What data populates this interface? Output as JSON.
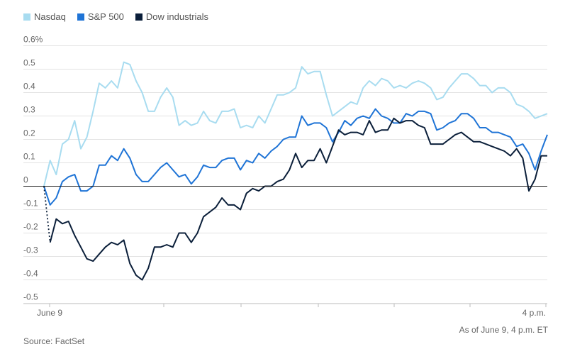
{
  "chart_data": {
    "type": "line",
    "title": "",
    "xlabel": "",
    "ylabel": "",
    "ylim": [
      -0.55,
      0.65
    ],
    "y_ticks": [
      "0.6%",
      "0.5",
      "0.4",
      "0.3",
      "0.2",
      "0.1",
      "0",
      "-0.1",
      "-0.2",
      "-0.3",
      "-0.4",
      "-0.5"
    ],
    "y_tick_values": [
      0.6,
      0.5,
      0.4,
      0.3,
      0.2,
      0.1,
      0,
      -0.1,
      -0.2,
      -0.3,
      -0.4,
      -0.5
    ],
    "x_tick_labels": [
      "June 9",
      "4 p.m."
    ],
    "grid": "horizontal",
    "legend_position": "top-left",
    "series": [
      {
        "name": "Nasdaq",
        "color": "#a8dcf0",
        "values": [
          0,
          0.11,
          0.05,
          0.18,
          0.2,
          0.28,
          0.16,
          0.21,
          0.32,
          0.44,
          0.42,
          0.45,
          0.42,
          0.53,
          0.52,
          0.45,
          0.4,
          0.32,
          0.32,
          0.38,
          0.42,
          0.38,
          0.26,
          0.28,
          0.26,
          0.27,
          0.32,
          0.28,
          0.27,
          0.32,
          0.32,
          0.33,
          0.25,
          0.26,
          0.25,
          0.3,
          0.27,
          0.33,
          0.39,
          0.39,
          0.4,
          0.42,
          0.51,
          0.48,
          0.49,
          0.49,
          0.39,
          0.3,
          0.32,
          0.34,
          0.36,
          0.35,
          0.42,
          0.45,
          0.43,
          0.46,
          0.45,
          0.42,
          0.43,
          0.42,
          0.44,
          0.45,
          0.44,
          0.42,
          0.37,
          0.38,
          0.42,
          0.45,
          0.48,
          0.48,
          0.46,
          0.43,
          0.43,
          0.4,
          0.42,
          0.42,
          0.4,
          0.35,
          0.34,
          0.32,
          0.29,
          0.3,
          0.31
        ]
      },
      {
        "name": "S&P 500",
        "color": "#1f74d6",
        "values": [
          0,
          -0.08,
          -0.05,
          0.02,
          0.04,
          0.05,
          -0.02,
          -0.02,
          0.0,
          0.09,
          0.09,
          0.13,
          0.11,
          0.16,
          0.12,
          0.05,
          0.02,
          0.02,
          0.05,
          0.08,
          0.1,
          0.07,
          0.04,
          0.05,
          0.01,
          0.04,
          0.09,
          0.08,
          0.08,
          0.11,
          0.12,
          0.12,
          0.07,
          0.11,
          0.1,
          0.14,
          0.12,
          0.15,
          0.17,
          0.2,
          0.21,
          0.21,
          0.3,
          0.26,
          0.27,
          0.27,
          0.25,
          0.19,
          0.23,
          0.28,
          0.26,
          0.29,
          0.3,
          0.29,
          0.33,
          0.3,
          0.29,
          0.27,
          0.27,
          0.31,
          0.3,
          0.32,
          0.32,
          0.31,
          0.24,
          0.25,
          0.27,
          0.28,
          0.31,
          0.31,
          0.29,
          0.25,
          0.25,
          0.23,
          0.23,
          0.22,
          0.21,
          0.17,
          0.18,
          0.14,
          0.07,
          0.15,
          0.22
        ]
      },
      {
        "name": "Dow industrials",
        "color": "#0b1f3a",
        "values": [
          0,
          -0.24,
          -0.14,
          -0.16,
          -0.15,
          -0.21,
          -0.26,
          -0.31,
          -0.32,
          -0.29,
          -0.26,
          -0.24,
          -0.25,
          -0.23,
          -0.33,
          -0.38,
          -0.4,
          -0.35,
          -0.26,
          -0.26,
          -0.25,
          -0.26,
          -0.2,
          -0.2,
          -0.24,
          -0.2,
          -0.13,
          -0.11,
          -0.09,
          -0.05,
          -0.08,
          -0.08,
          -0.1,
          -0.03,
          -0.01,
          -0.02,
          0.0,
          0.0,
          0.02,
          0.03,
          0.07,
          0.14,
          0.08,
          0.11,
          0.11,
          0.16,
          0.1,
          0.17,
          0.24,
          0.22,
          0.23,
          0.23,
          0.22,
          0.28,
          0.23,
          0.24,
          0.24,
          0.29,
          0.27,
          0.28,
          0.28,
          0.26,
          0.25,
          0.18,
          0.18,
          0.18,
          0.2,
          0.22,
          0.23,
          0.21,
          0.19,
          0.19,
          0.18,
          0.17,
          0.16,
          0.15,
          0.13,
          0.16,
          0.12,
          -0.02,
          0.03,
          0.13,
          0.13
        ]
      }
    ]
  },
  "as_of_note": "As of June 9, 4 p.m. ET",
  "source": "Source: FactSet"
}
